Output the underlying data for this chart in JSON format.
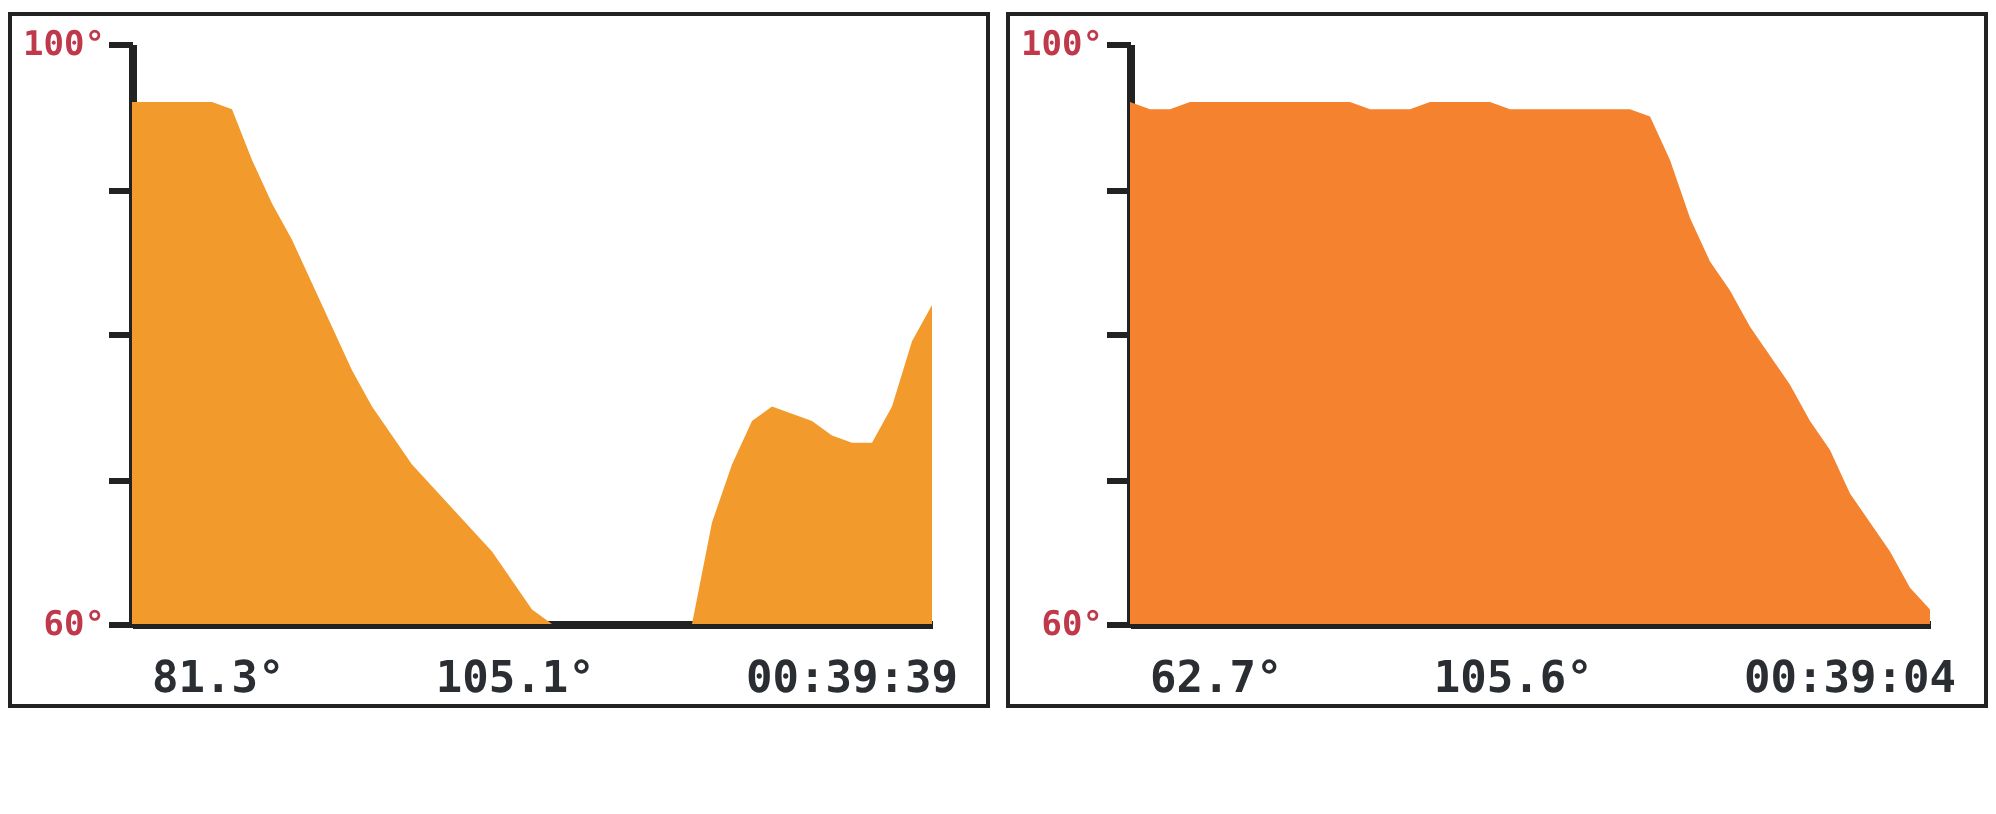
{
  "chart_data": [
    {
      "type": "area",
      "categories": [
        null,
        null,
        null,
        null,
        null,
        null,
        null,
        null,
        null,
        null,
        null,
        null,
        null,
        null,
        null,
        null,
        null,
        null,
        null,
        null,
        null,
        null,
        null,
        null,
        null,
        null,
        null,
        null,
        null,
        null,
        null,
        null,
        null,
        null,
        null,
        null,
        null,
        null,
        null,
        null,
        null
      ],
      "series": [
        {
          "color": "#f39a2c",
          "values": [
            96,
            96,
            96,
            96,
            96,
            95.5,
            92,
            89,
            86.5,
            83.5,
            80.5,
            77.5,
            75,
            73,
            71,
            69.5,
            68,
            66.5,
            65,
            63,
            61,
            60,
            60,
            60,
            60,
            60,
            60,
            60,
            60,
            67,
            71,
            74,
            75,
            74.5,
            74,
            73,
            72.5,
            72.5,
            75,
            79.5,
            82
          ]
        }
      ],
      "ylim": [
        60,
        100
      ],
      "yticks": [
        {
          "value": 60,
          "label": "60°"
        },
        {
          "value": 70,
          "label": null
        },
        {
          "value": 80,
          "label": null
        },
        {
          "value": 90,
          "label": null
        },
        {
          "value": 100,
          "label": "100°"
        }
      ],
      "tick_labels": "y",
      "annotations": [
        "81.3°",
        "105.1°",
        "00:39:39"
      ]
    },
    {
      "type": "area",
      "categories": [
        null,
        null,
        null,
        null,
        null,
        null,
        null,
        null,
        null,
        null,
        null,
        null,
        null,
        null,
        null,
        null,
        null,
        null,
        null,
        null,
        null,
        null,
        null,
        null,
        null,
        null,
        null,
        null,
        null,
        null,
        null,
        null,
        null,
        null,
        null,
        null,
        null,
        null,
        null,
        null,
        null
      ],
      "series": [
        {
          "color": "#f4822e",
          "values": [
            96,
            95.5,
            95.5,
            96,
            96,
            96,
            96,
            96,
            96,
            96,
            96,
            96,
            95.5,
            95.5,
            95.5,
            96,
            96,
            96,
            96,
            95.5,
            95.5,
            95.5,
            95.5,
            95.5,
            95.5,
            95.5,
            95,
            92,
            88,
            85,
            83,
            80.5,
            78.5,
            76.5,
            74,
            72,
            69,
            67,
            65,
            62.5,
            61
          ]
        }
      ],
      "ylim": [
        60,
        100
      ],
      "yticks": [
        {
          "value": 60,
          "label": "60°"
        },
        {
          "value": 70,
          "label": null
        },
        {
          "value": 80,
          "label": null
        },
        {
          "value": 90,
          "label": null
        },
        {
          "value": 100,
          "label": "100°"
        }
      ],
      "tick_labels": "y",
      "annotations": [
        "62.7°",
        "105.6°",
        "00:39:04"
      ]
    }
  ]
}
